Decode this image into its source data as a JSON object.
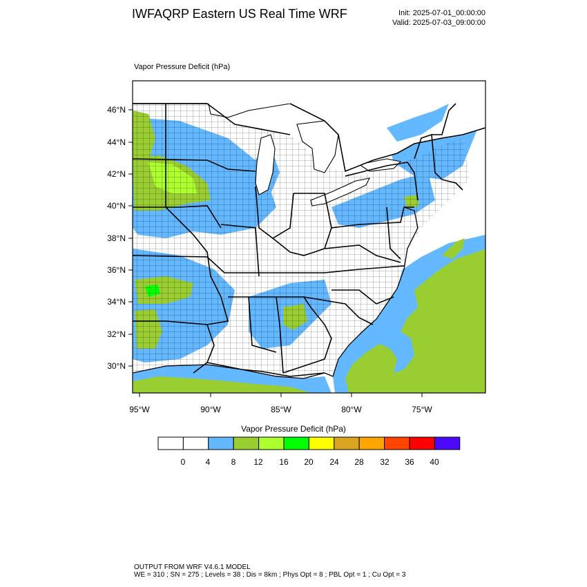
{
  "header": {
    "title": "IWFAQRP Eastern US Real Time WRF",
    "init": "Init: 2025-07-01_00:00:00",
    "valid": "Valid: 2025-07-03_09:00:00"
  },
  "plot": {
    "field_title": "Vapor Pressure Deficit   (hPa)",
    "lat_labels": [
      "46°N",
      "44°N",
      "42°N",
      "40°N",
      "38°N",
      "36°N",
      "34°N",
      "32°N",
      "30°N"
    ],
    "lon_labels": [
      "95°W",
      "90°W",
      "85°W",
      "80°W",
      "75°W"
    ]
  },
  "colorbar": {
    "title": "Vapor Pressure Deficit  (hPa)",
    "labels": [
      "0",
      "4",
      "8",
      "12",
      "16",
      "20",
      "24",
      "28",
      "32",
      "36",
      "40"
    ],
    "colors": [
      "#ffffff",
      "#ffffff",
      "#63b8ff",
      "#9acd32",
      "#adff2f",
      "#00ff00",
      "#ffff00",
      "#daa520",
      "#ffa500",
      "#ff4500",
      "#ff0000",
      "#4b0aff"
    ]
  },
  "footer": {
    "line1": "OUTPUT FROM WRF V4.6.1 MODEL",
    "line2": "WE = 310 ; SN = 275 ; Levels = 38 ; Dis = 8km ; Phys Opt = 8 ; PBL Opt = 1 ; Cu Opt = 3"
  },
  "colors": {
    "land_fill": "#ffffff",
    "water": "#ffffff",
    "vpd_4_8": "#63b8ff",
    "vpd_8_12": "#9acd32",
    "vpd_12_16": "#adff2f",
    "vpd_16_20": "#00ff00"
  }
}
